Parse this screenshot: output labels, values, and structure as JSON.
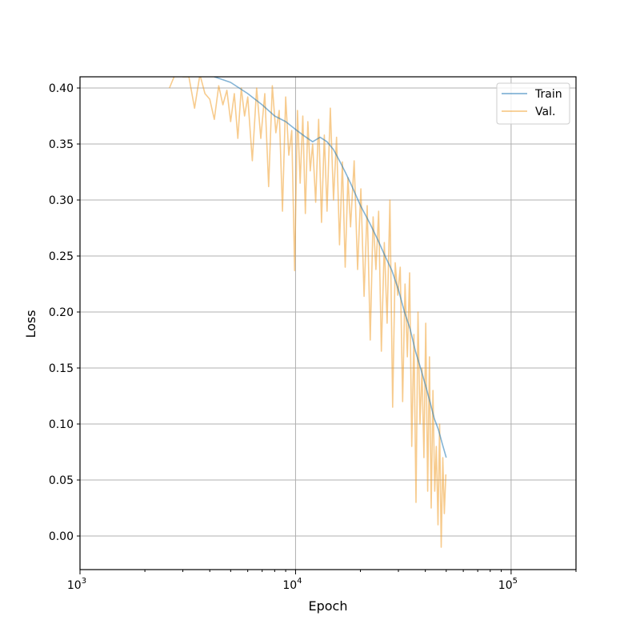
{
  "chart_data": {
    "type": "line",
    "title": "",
    "xlabel": "Epoch",
    "ylabel": "Loss",
    "x_scale": "log",
    "xlim": [
      1000,
      200000
    ],
    "ylim": [
      -0.03,
      0.41
    ],
    "grid": true,
    "legend_position": "top-right",
    "x_major_ticks": [
      {
        "value": 1000,
        "base": "10",
        "exp": "3"
      },
      {
        "value": 10000,
        "base": "10",
        "exp": "4"
      },
      {
        "value": 100000,
        "base": "10",
        "exp": "5"
      }
    ],
    "y_ticks": [
      0.0,
      0.05,
      0.1,
      0.15,
      0.2,
      0.25,
      0.3,
      0.35,
      0.4
    ],
    "y_tick_labels": [
      "0.00",
      "0.05",
      "0.10",
      "0.15",
      "0.20",
      "0.25",
      "0.30",
      "0.35",
      "0.40"
    ],
    "series": [
      {
        "name": "Train",
        "color": "#1f77b4",
        "x": [
          4200,
          5000,
          6000,
          7000,
          8000,
          9000,
          10000,
          11000,
          12000,
          13000,
          14000,
          15000,
          16000,
          17000,
          18000,
          20000,
          22000,
          24000,
          26000,
          28000,
          30000,
          32000,
          34000,
          36000,
          38000,
          40000,
          42000,
          44000,
          46000,
          48000,
          50000
        ],
        "y": [
          0.41,
          0.405,
          0.395,
          0.385,
          0.375,
          0.37,
          0.363,
          0.357,
          0.352,
          0.356,
          0.352,
          0.345,
          0.335,
          0.325,
          0.315,
          0.295,
          0.28,
          0.265,
          0.25,
          0.237,
          0.22,
          0.2,
          0.185,
          0.165,
          0.15,
          0.135,
          0.12,
          0.105,
          0.095,
          0.082,
          0.07
        ]
      },
      {
        "name": "Val.",
        "color": "#f0a030",
        "x": [
          2600,
          2800,
          3000,
          3200,
          3400,
          3600,
          3800,
          4000,
          4200,
          4400,
          4600,
          4800,
          5000,
          5200,
          5400,
          5600,
          5800,
          6000,
          6300,
          6600,
          6900,
          7200,
          7500,
          7800,
          8100,
          8400,
          8700,
          9000,
          9300,
          9600,
          9900,
          10200,
          10500,
          10800,
          11100,
          11400,
          11700,
          12000,
          12400,
          12800,
          13200,
          13600,
          14000,
          14500,
          15000,
          15500,
          16000,
          16500,
          17000,
          17500,
          18000,
          18700,
          19400,
          20100,
          20800,
          21500,
          22200,
          22900,
          23600,
          24300,
          25000,
          25800,
          26600,
          27400,
          28200,
          29000,
          29800,
          30600,
          31400,
          32200,
          33000,
          33800,
          34600,
          35400,
          36200,
          37000,
          37800,
          38600,
          39400,
          40200,
          41000,
          41800,
          42600,
          43400,
          44200,
          45000,
          45800,
          46600,
          47400,
          48200,
          49000,
          49800
        ],
        "y": [
          0.4,
          0.415,
          0.41,
          0.41,
          0.382,
          0.412,
          0.395,
          0.39,
          0.372,
          0.402,
          0.385,
          0.398,
          0.37,
          0.395,
          0.355,
          0.4,
          0.375,
          0.392,
          0.335,
          0.4,
          0.355,
          0.395,
          0.312,
          0.402,
          0.36,
          0.38,
          0.29,
          0.392,
          0.34,
          0.362,
          0.237,
          0.38,
          0.315,
          0.375,
          0.288,
          0.37,
          0.326,
          0.35,
          0.298,
          0.372,
          0.28,
          0.358,
          0.29,
          0.382,
          0.3,
          0.356,
          0.26,
          0.334,
          0.24,
          0.32,
          0.276,
          0.335,
          0.238,
          0.31,
          0.214,
          0.295,
          0.175,
          0.285,
          0.238,
          0.29,
          0.165,
          0.262,
          0.19,
          0.3,
          0.115,
          0.244,
          0.215,
          0.24,
          0.12,
          0.225,
          0.16,
          0.235,
          0.08,
          0.18,
          0.03,
          0.2,
          0.1,
          0.15,
          0.07,
          0.19,
          0.04,
          0.16,
          0.025,
          0.13,
          0.04,
          0.08,
          0.01,
          0.1,
          -0.01,
          0.07,
          0.02,
          0.055
        ]
      }
    ]
  }
}
